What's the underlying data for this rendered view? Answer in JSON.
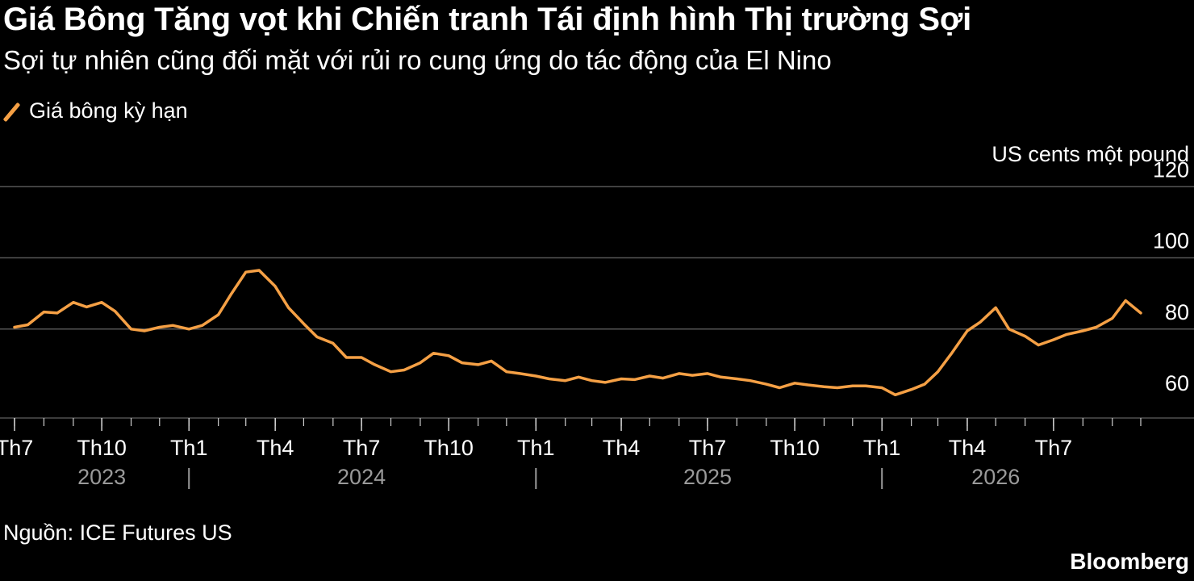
{
  "header": {
    "title": "Giá Bông Tăng vọt khi Chiến tranh Tái định hình Thị trường Sợi",
    "subtitle": "Sợi tự nhiên cũng đối mặt với rủi ro cung ứng do tác động của El Nino"
  },
  "legend": {
    "label": "Giá bông kỳ hạn"
  },
  "footer": {
    "source": "Nguồn: ICE Futures US",
    "brand": "Bloomberg"
  },
  "colors": {
    "line": "#f5a045",
    "grid": "#555555",
    "background": "#000000",
    "axis_text": "#ffffff",
    "year_text": "#9a9a9a"
  },
  "chart_data": {
    "type": "line",
    "title": "Giá Bông Tăng vọt khi Chiến tranh Tái định hình Thị trường Sợi",
    "subtitle": "Sợi tự nhiên cũng đối mặt với rủi ro cung ứng do tác động của El Nino",
    "ylabel": "US cents một pound",
    "ylim": [
      55,
      120
    ],
    "yticks": [
      60,
      80,
      100,
      120
    ],
    "grid": true,
    "legend_position": "top-left",
    "xlim": [
      "2023-07",
      "2026-10"
    ],
    "x_tick_labels": [
      "Th7",
      "Th10",
      "Th1",
      "Th4",
      "Th7",
      "Th10",
      "Th1",
      "Th4",
      "Th7",
      "Th10",
      "Th1",
      "Th4",
      "Th7"
    ],
    "x_tick_dates": [
      "2023-07",
      "2023-10",
      "2024-01",
      "2024-04",
      "2024-07",
      "2024-10",
      "2025-01",
      "2025-04",
      "2025-07",
      "2025-10",
      "2026-01",
      "2026-04",
      "2026-07"
    ],
    "year_labels": [
      {
        "label": "2023",
        "date": "2023-10"
      },
      {
        "label": "2024",
        "date": "2024-07"
      },
      {
        "label": "2025",
        "date": "2025-07"
      },
      {
        "label": "2026",
        "date": "2026-05"
      }
    ],
    "year_separators": [
      "2024-01",
      "2025-01",
      "2026-01"
    ],
    "series": [
      {
        "name": "Giá bông kỳ hạn",
        "x": [
          "2023-07-01",
          "2023-07-15",
          "2023-08-01",
          "2023-08-15",
          "2023-09-01",
          "2023-09-15",
          "2023-10-01",
          "2023-10-15",
          "2023-11-01",
          "2023-11-15",
          "2023-12-01",
          "2023-12-15",
          "2024-01-01",
          "2024-01-15",
          "2024-02-01",
          "2024-02-15",
          "2024-03-01",
          "2024-03-15",
          "2024-04-01",
          "2024-04-15",
          "2024-05-01",
          "2024-05-15",
          "2024-06-01",
          "2024-06-15",
          "2024-07-01",
          "2024-07-15",
          "2024-08-01",
          "2024-08-15",
          "2024-09-01",
          "2024-09-15",
          "2024-10-01",
          "2024-10-15",
          "2024-11-01",
          "2024-11-15",
          "2024-12-01",
          "2024-12-15",
          "2025-01-01",
          "2025-01-15",
          "2025-02-01",
          "2025-02-15",
          "2025-03-01",
          "2025-03-15",
          "2025-04-01",
          "2025-04-15",
          "2025-05-01",
          "2025-05-15",
          "2025-06-01",
          "2025-06-15",
          "2025-07-01",
          "2025-07-15",
          "2025-08-01",
          "2025-08-15",
          "2025-09-01",
          "2025-09-15",
          "2025-10-01",
          "2025-10-15",
          "2025-11-01",
          "2025-11-15",
          "2025-12-01",
          "2025-12-15",
          "2026-01-01",
          "2026-01-15",
          "2026-02-01",
          "2026-02-15",
          "2026-03-01",
          "2026-03-15",
          "2026-04-01",
          "2026-04-15",
          "2026-05-01",
          "2026-05-15",
          "2026-06-01",
          "2026-06-15",
          "2026-07-01",
          "2026-07-15",
          "2026-08-01",
          "2026-08-15",
          "2026-09-01",
          "2026-09-15",
          "2026-10-01"
        ],
        "values": [
          80.5,
          81.2,
          84.8,
          84.5,
          87.5,
          86.2,
          87.5,
          85.0,
          80.0,
          79.5,
          80.5,
          81.0,
          80.0,
          81.0,
          84.0,
          90.0,
          96.0,
          96.5,
          92.0,
          86.0,
          81.5,
          77.8,
          76.0,
          72.0,
          72.0,
          70.0,
          68.0,
          68.5,
          70.5,
          73.2,
          72.5,
          70.5,
          70.0,
          71.0,
          68.0,
          67.5,
          66.8,
          66.0,
          65.5,
          66.5,
          65.5,
          65.0,
          66.0,
          65.8,
          66.8,
          66.2,
          67.5,
          67.0,
          67.5,
          66.5,
          66.0,
          65.5,
          64.5,
          63.5,
          64.8,
          64.3,
          63.8,
          63.5,
          64.0,
          64.0,
          63.5,
          61.5,
          63.0,
          64.5,
          68.0,
          73.0,
          79.5,
          82.0,
          86.0,
          80.0,
          78.0,
          75.5,
          77.0,
          78.5,
          79.5,
          80.5,
          83.0,
          88.0,
          84.5
        ]
      }
    ]
  }
}
